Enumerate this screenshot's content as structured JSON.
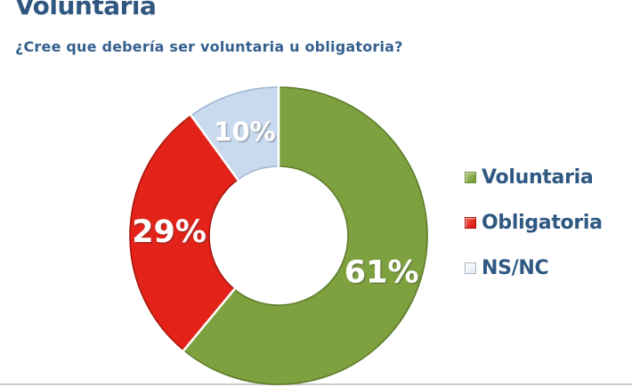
{
  "header": {
    "title": "Voluntaria",
    "subtitle": "¿Cree que debería ser voluntaria u obligatoria?"
  },
  "chart_data": {
    "type": "pie",
    "subtype": "donut",
    "title": "Voluntaria",
    "question": "¿Cree que debería ser voluntaria u obligatoria?",
    "categories": [
      "Voluntaria",
      "Obligatoria",
      "NS/NC"
    ],
    "values": [
      61,
      29,
      10
    ],
    "unit": "%",
    "data_labels": [
      "61%",
      "29%",
      "10%"
    ],
    "colors": [
      "#7EA13F",
      "#E3231A",
      "#C9DAEF"
    ],
    "edge_colors": [
      "#5E7B2B",
      "#A8170E",
      "#9FB4CE"
    ],
    "label_color": "#FFFFFF",
    "separator_color": "#FFFFFF",
    "start_angle_deg": 0,
    "direction": "clockwise",
    "inner_radius_ratio": 0.46,
    "legend_position": "right"
  },
  "legend": {
    "items": [
      {
        "label": "Voluntaria",
        "color": "#7EA13F",
        "highlight": "#B3CC7A",
        "border": "#69882F"
      },
      {
        "label": "Obligatoria",
        "color": "#E3231A",
        "highlight": "#F0695F",
        "border": "#A81008"
      },
      {
        "label": "NS/NC",
        "color": "#E9EEF5",
        "highlight": "#FFFFFF",
        "border": "#A9B6C4"
      }
    ]
  },
  "colors": {
    "heading_text": "#305780",
    "background": "#FFFFFF",
    "bottom_rule": "#CBCBCB"
  }
}
